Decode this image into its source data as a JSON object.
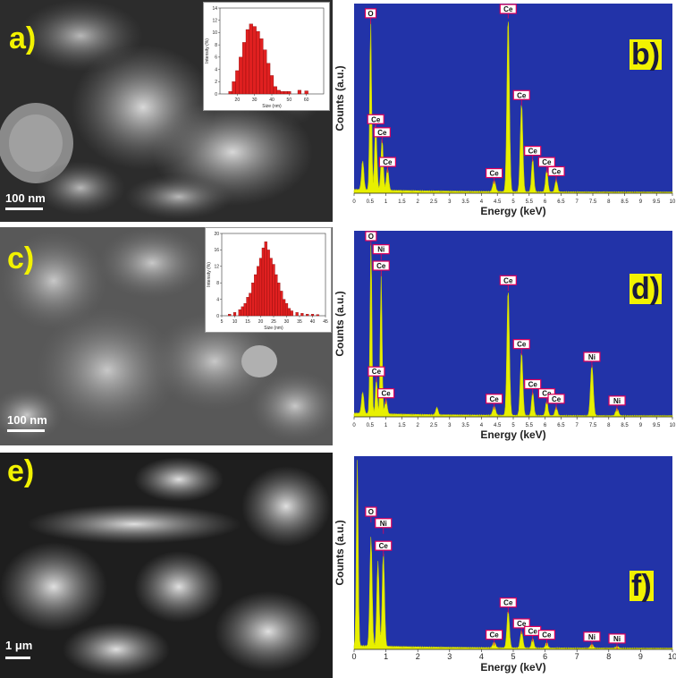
{
  "panels": {
    "a": {
      "label": "a)",
      "scale": "100 nm"
    },
    "b": {
      "label": "b)"
    },
    "c": {
      "label": "c)",
      "scale": "100 nm"
    },
    "d": {
      "label": "d)"
    },
    "e": {
      "label": "e)",
      "scale": "1 μm"
    },
    "f": {
      "label": "f)"
    }
  },
  "colors": {
    "plot_bg": "#2233a8",
    "spectrum": "#e8f000",
    "label_yellow": "#f2f200",
    "bar_red": "#e02020",
    "peak_marker": "#e0005a"
  },
  "chart_data": [
    {
      "id": "a-inset",
      "type": "bar",
      "xlabel": "Size (nm)",
      "ylabel": "Intensity (%)",
      "xlim": [
        10,
        70
      ],
      "ylim": [
        0,
        14
      ],
      "xticks": [
        20,
        30,
        40,
        50,
        60
      ],
      "yticks": [
        0,
        2,
        4,
        6,
        8,
        10,
        12,
        14
      ],
      "x": [
        16,
        18,
        20,
        22,
        24,
        26,
        28,
        30,
        32,
        34,
        36,
        38,
        40,
        42,
        44,
        46,
        48,
        50,
        56,
        60
      ],
      "values": [
        0.4,
        2.0,
        3.8,
        6.0,
        8.4,
        10.5,
        11.4,
        11.0,
        10.2,
        9.0,
        7.2,
        5.0,
        3.0,
        1.2,
        0.6,
        0.4,
        0.4,
        0.4,
        0.6,
        0.5
      ],
      "bar_width": 2
    },
    {
      "id": "c-inset",
      "type": "bar",
      "xlabel": "Size (nm)",
      "ylabel": "Intensity (%)",
      "xlim": [
        5,
        45
      ],
      "ylim": [
        0,
        20
      ],
      "xticks": [
        5,
        10,
        15,
        20,
        25,
        30,
        35,
        40,
        45
      ],
      "yticks": [
        0,
        4,
        8,
        12,
        16,
        20
      ],
      "x": [
        8,
        10,
        12,
        13,
        14,
        15,
        16,
        17,
        18,
        19,
        20,
        21,
        22,
        23,
        24,
        25,
        26,
        27,
        28,
        29,
        30,
        31,
        32,
        34,
        36,
        38,
        40,
        42
      ],
      "values": [
        0.4,
        0.8,
        1.5,
        2.2,
        3.0,
        4.5,
        5.5,
        8.0,
        10.0,
        12.0,
        14.0,
        16.5,
        18.0,
        16.0,
        14.0,
        12.5,
        10.0,
        8.0,
        6.0,
        4.0,
        3.0,
        1.8,
        1.2,
        0.8,
        0.6,
        0.4,
        0.4,
        0.3
      ],
      "bar_width": 1
    },
    {
      "id": "b",
      "type": "area",
      "xlabel": "Energy (keV)",
      "ylabel": "Counts (a.u.)",
      "xlim": [
        0,
        10
      ],
      "ylim": [
        0,
        1
      ],
      "xticks": [
        "0",
        "0.5",
        "1",
        "1.5",
        "2",
        "2.5",
        "3",
        "3.5",
        "4",
        "4.5",
        "5",
        "5.5",
        "6",
        "6.5",
        "7",
        "7.5",
        "8",
        "8.5",
        "9",
        "9.5",
        "10"
      ],
      "peaks": [
        {
          "x": 0.27,
          "h": 0.16,
          "w": 0.05
        },
        {
          "x": 0.52,
          "h": 0.92,
          "w": 0.04
        },
        {
          "x": 0.68,
          "h": 0.35,
          "w": 0.05
        },
        {
          "x": 0.88,
          "h": 0.28,
          "w": 0.05
        },
        {
          "x": 1.05,
          "h": 0.12,
          "w": 0.05
        },
        {
          "x": 4.4,
          "h": 0.06,
          "w": 0.06
        },
        {
          "x": 4.84,
          "h": 0.95,
          "w": 0.055
        },
        {
          "x": 5.26,
          "h": 0.48,
          "w": 0.055
        },
        {
          "x": 5.61,
          "h": 0.18,
          "w": 0.05
        },
        {
          "x": 6.05,
          "h": 0.12,
          "w": 0.05
        },
        {
          "x": 6.35,
          "h": 0.07,
          "w": 0.05
        }
      ],
      "labels": [
        {
          "text": "O",
          "x": 0.52,
          "h": 0.92
        },
        {
          "text": "Ce",
          "x": 4.84,
          "h": 0.95
        },
        {
          "text": "Ce",
          "x": 5.26,
          "h": 0.48
        },
        {
          "text": "Ce",
          "x": 0.68,
          "h": 0.35
        },
        {
          "text": "Ce",
          "x": 0.88,
          "h": 0.28
        },
        {
          "text": "Ce",
          "x": 1.05,
          "h": 0.12
        },
        {
          "text": "Ce",
          "x": 4.4,
          "h": 0.06
        },
        {
          "text": "Ce",
          "x": 5.61,
          "h": 0.18
        },
        {
          "text": "Ce",
          "x": 6.05,
          "h": 0.12
        },
        {
          "text": "Ce",
          "x": 6.35,
          "h": 0.07
        }
      ]
    },
    {
      "id": "d",
      "type": "area",
      "xlabel": "Energy (keV)",
      "ylabel": "Counts (a.u.)",
      "xlim": [
        0,
        10
      ],
      "ylim": [
        0,
        1
      ],
      "xticks": [
        "0",
        "0.5",
        "1",
        "1.5",
        "2",
        "2.5",
        "3",
        "3.5",
        "4",
        "4.5",
        "5",
        "5.5",
        "6",
        "6.5",
        "7",
        "7.5",
        "8",
        "8.5",
        "9",
        "9.5",
        "10"
      ],
      "peaks": [
        {
          "x": 0.27,
          "h": 0.12,
          "w": 0.05
        },
        {
          "x": 0.53,
          "h": 0.95,
          "w": 0.04
        },
        {
          "x": 0.7,
          "h": 0.2,
          "w": 0.04
        },
        {
          "x": 0.85,
          "h": 0.78,
          "w": 0.04
        },
        {
          "x": 1.0,
          "h": 0.08,
          "w": 0.05
        },
        {
          "x": 2.6,
          "h": 0.04,
          "w": 0.05
        },
        {
          "x": 4.4,
          "h": 0.05,
          "w": 0.06
        },
        {
          "x": 4.84,
          "h": 0.7,
          "w": 0.055
        },
        {
          "x": 5.26,
          "h": 0.35,
          "w": 0.055
        },
        {
          "x": 5.61,
          "h": 0.13,
          "w": 0.05
        },
        {
          "x": 6.05,
          "h": 0.08,
          "w": 0.05
        },
        {
          "x": 6.35,
          "h": 0.05,
          "w": 0.05
        },
        {
          "x": 7.47,
          "h": 0.28,
          "w": 0.06
        },
        {
          "x": 8.26,
          "h": 0.04,
          "w": 0.06
        }
      ],
      "labels": [
        {
          "text": "O",
          "x": 0.53,
          "h": 0.95
        },
        {
          "text": "Ni",
          "x": 0.85,
          "h": 0.87
        },
        {
          "text": "Ce",
          "x": 0.85,
          "h": 0.78
        },
        {
          "text": "Ce",
          "x": 4.84,
          "h": 0.7
        },
        {
          "text": "Ce",
          "x": 5.26,
          "h": 0.35
        },
        {
          "text": "Ce",
          "x": 0.7,
          "h": 0.2
        },
        {
          "text": "Ce",
          "x": 1.0,
          "h": 0.08
        },
        {
          "text": "Ce",
          "x": 4.4,
          "h": 0.05
        },
        {
          "text": "Ce",
          "x": 5.61,
          "h": 0.13
        },
        {
          "text": "Ce",
          "x": 6.05,
          "h": 0.08
        },
        {
          "text": "Ce",
          "x": 6.35,
          "h": 0.05
        },
        {
          "text": "Ni",
          "x": 7.47,
          "h": 0.28
        },
        {
          "text": "Ni",
          "x": 8.26,
          "h": 0.04
        }
      ]
    },
    {
      "id": "f",
      "type": "area",
      "xlabel": "Energy (keV)",
      "ylabel": "Counts (a.u.)",
      "xlim": [
        0,
        10
      ],
      "ylim": [
        0,
        1
      ],
      "xticks": [
        "0",
        "1",
        "2",
        "3",
        "4",
        "5",
        "6",
        "7",
        "8",
        "9",
        "10"
      ],
      "peaks": [
        {
          "x": 0.1,
          "h": 1.0,
          "w": 0.04
        },
        {
          "x": 0.53,
          "h": 0.58,
          "w": 0.05
        },
        {
          "x": 0.75,
          "h": 0.45,
          "w": 0.05
        },
        {
          "x": 0.92,
          "h": 0.5,
          "w": 0.05
        },
        {
          "x": 4.4,
          "h": 0.03,
          "w": 0.06
        },
        {
          "x": 4.84,
          "h": 0.2,
          "w": 0.055
        },
        {
          "x": 5.26,
          "h": 0.09,
          "w": 0.055
        },
        {
          "x": 5.61,
          "h": 0.05,
          "w": 0.05
        },
        {
          "x": 6.05,
          "h": 0.03,
          "w": 0.05
        },
        {
          "x": 7.47,
          "h": 0.02,
          "w": 0.06
        },
        {
          "x": 8.26,
          "h": 0.01,
          "w": 0.06
        }
      ],
      "labels": [
        {
          "text": "O",
          "x": 0.53,
          "h": 0.68
        },
        {
          "text": "Ni",
          "x": 0.92,
          "h": 0.62
        },
        {
          "text": "Ce",
          "x": 0.92,
          "h": 0.5
        },
        {
          "text": "Ce",
          "x": 4.84,
          "h": 0.2
        },
        {
          "text": "Ce",
          "x": 4.4,
          "h": 0.03
        },
        {
          "text": "Ce",
          "x": 5.26,
          "h": 0.09
        },
        {
          "text": "Ce",
          "x": 5.61,
          "h": 0.05
        },
        {
          "text": "Ce",
          "x": 6.05,
          "h": 0.03
        },
        {
          "text": "Ni",
          "x": 7.47,
          "h": 0.02
        },
        {
          "text": "Ni",
          "x": 8.26,
          "h": 0.01
        }
      ]
    }
  ]
}
